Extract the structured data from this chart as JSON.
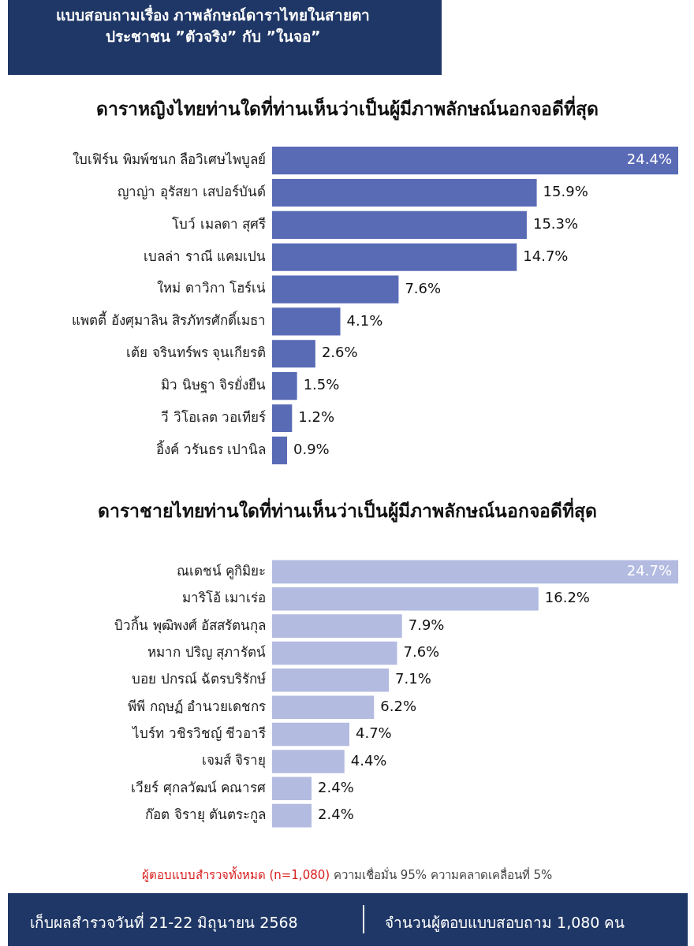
{
  "chart_data": [
    {
      "type": "bar",
      "orientation": "horizontal",
      "title": "ดาราหญิงไทยท่านใดที่ท่านเห็นว่าเป็นผู้มีภาพลักษณ์นอกจอดีที่สุด",
      "annotations": [
        "แบบสอบถามเรื่อง ภาพลักษณ์ดาราไทยในสายตาประชาชน ”ตัวจริง” กับ ”ในจอ”"
      ],
      "categories": [
        "ใบเฟิร์น พิมพ์ชนก ลือวิเศษไพบูลย์",
        "ญาญ่า อุรัสยา เสปอร์บันด์",
        "โบว์ เมลดา สุศรี",
        "เบลล่า ราณี แคมเปน",
        "ใหม่ ดาวิกา โฮร์เน่",
        "แพตตี้ อังศุมาลิน สิรภัทรศักดิ์เมธา",
        "เต้ย จรินทร์พร จุนเกียรติ",
        "มิว นิษฐา จิรยั่งยืน",
        "วี วิโอเลต วอเทียร์",
        "อิ้งค์ วรันธร เปานิล"
      ],
      "values": [
        24.4,
        15.9,
        15.3,
        14.7,
        7.6,
        4.1,
        2.6,
        1.5,
        1.2,
        0.9
      ],
      "value_labels": [
        "24.4%",
        "15.9%",
        "15.3%",
        "14.7%",
        "7.6%",
        "4.1%",
        "2.6%",
        "1.5%",
        "1.2%",
        "0.9%"
      ],
      "color": "#5a6bb6",
      "tick_labels": "y",
      "grid": false,
      "legend": false
    },
    {
      "type": "bar",
      "orientation": "horizontal",
      "title": "ดาราชายไทยท่านใดที่ท่านเห็นว่าเป็นผู้มีภาพลักษณ์นอกจอดีที่สุด",
      "annotations": [
        "ผู้ตอบแบบสำรวจทั้งหมด (n=1,080)",
        "ความเชื่อมั่น 95% ความคลาดเคลื่อนที่ 5%",
        "เก็บผลสำรวจวันที่ 21-22 มิถุนายน 2568",
        "จำนวนผู้ตอบแบบสอบถาม 1,080 คน"
      ],
      "categories": [
        "ณเดชน์ คูกิมิยะ",
        "มาริโอ้ เมาเร่อ",
        "บิวกิ้น พุฒิพงศ์ อัสสรัตนกุล",
        "หมาก ปริญ สุภารัตน์",
        "บอย ปกรณ์ ฉัตรบริรักษ์",
        "พีพี กฤษฏ์ อำนวยเดชกร",
        "ไบร์ท วชิรวิชญ์ ชีวอารี",
        "เจมส์ จิรายุ",
        "เวียร์ ศุกลวัฒน์ คณารศ",
        "ก๊อต จิรายุ ตันตระกูล"
      ],
      "values": [
        24.7,
        16.2,
        7.9,
        7.6,
        7.1,
        6.2,
        4.7,
        4.4,
        2.4,
        2.4
      ],
      "value_labels": [
        "24.7%",
        "16.2%",
        "7.9%",
        "7.6%",
        "7.1%",
        "6.2%",
        "4.7%",
        "4.4%",
        "2.4%",
        "2.4%"
      ],
      "color": "#b3bbe1",
      "tick_labels": "y",
      "grid": false,
      "legend": false
    }
  ]
}
